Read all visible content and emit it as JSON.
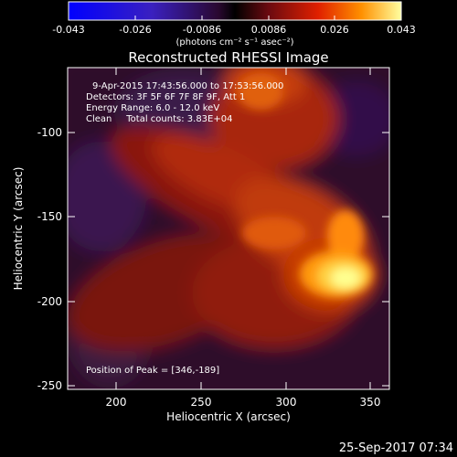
{
  "colorbar": {
    "ticks": [
      "-0.043",
      "-0.026",
      "-0.0086",
      "0.0086",
      "0.026",
      "0.043"
    ],
    "unit_label": "(photons cm⁻² s⁻¹ asec⁻²)"
  },
  "title": "Reconstructed RHESSI Image",
  "info": {
    "time": "9-Apr-2015 17:43:56.000 to 17:53:56.000",
    "detectors": "Detectors: 3F 5F 6F 7F 8F 9F, Att 1",
    "energy": "Energy Range: 6.0 - 12.0 keV",
    "clean": "Clean     Total counts: 3.83E+04",
    "peak": "Position of Peak = [346,-189]"
  },
  "axes": {
    "xlabel": "Heliocentric X (arcsec)",
    "ylabel": "Heliocentric Y (arcsec)",
    "xticks": [
      "200",
      "250",
      "300",
      "350"
    ],
    "yticks": [
      "-100",
      "-150",
      "-200",
      "-250"
    ]
  },
  "timestamp": "25-Sep-2017 07:34"
}
